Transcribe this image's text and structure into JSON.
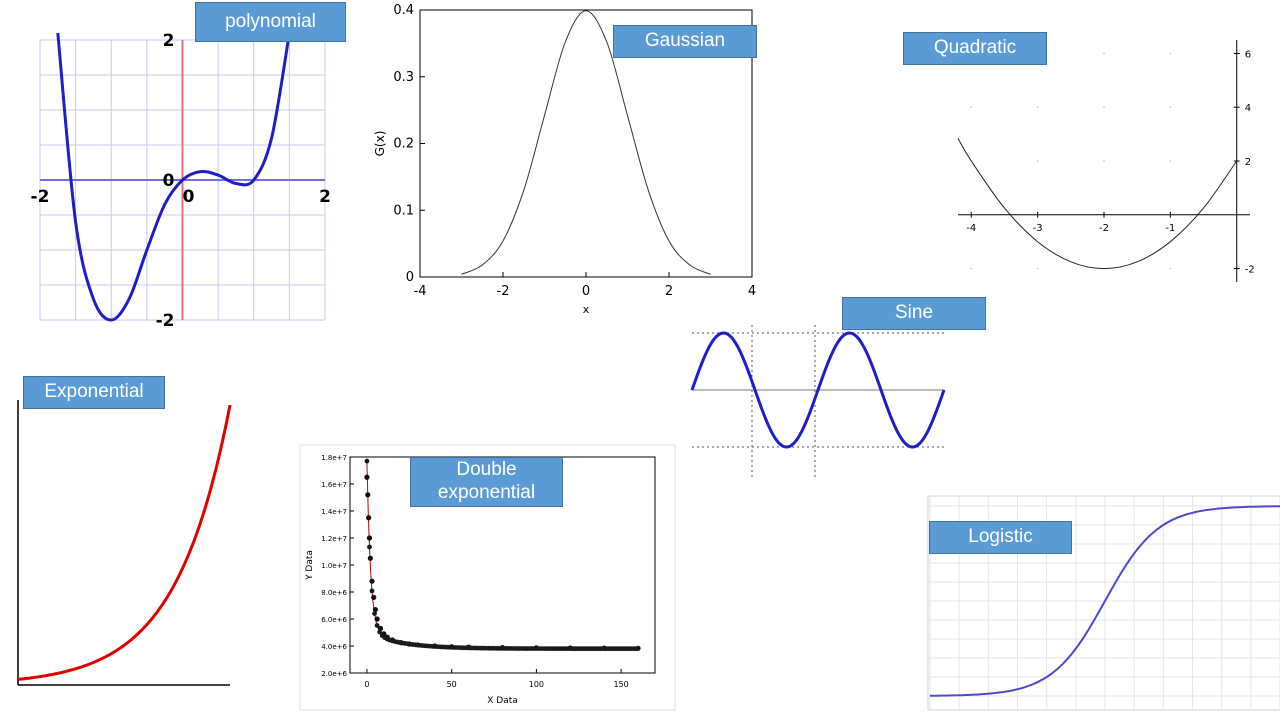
{
  "slide": {
    "labels": {
      "polynomial": "polynomial",
      "gaussian": "Gaussian",
      "quadratic": "Quadratic",
      "sine": "Sine",
      "exponential": "Exponential",
      "double_exponential": "Double exponential",
      "logistic": "Logistic"
    }
  },
  "colors": {
    "label_bg": "#5b9bd5",
    "blue_curve": "#1f1fc8",
    "red_curve": "#e00000",
    "logistic_curve": "#4a4ad0"
  },
  "chart_data": [
    {
      "id": "polynomial",
      "type": "line",
      "xlim": [
        -2,
        2
      ],
      "ylim": [
        -2,
        2
      ],
      "xticks": [
        "-2",
        "0",
        "2"
      ],
      "yticks": [
        "2",
        "0",
        "-2"
      ],
      "grid": true,
      "series": [
        {
          "x": [
            -1.75,
            -1.5,
            -1.25,
            -1,
            -0.75,
            -0.5,
            -0.25,
            0,
            0.25,
            0.5,
            0.75,
            1,
            1.25,
            1.5
          ],
          "y": [
            2.1,
            -0.6,
            -1.7,
            -2.0,
            -1.7,
            -1.0,
            -0.35,
            0,
            0.12,
            0.07,
            -0.05,
            0,
            0.6,
            2.1
          ]
        }
      ]
    },
    {
      "id": "gaussian",
      "type": "line",
      "xlim": [
        -4,
        4
      ],
      "ylim": [
        0,
        0.4
      ],
      "xticks": [
        "-4",
        "-2",
        "0",
        "2",
        "4"
      ],
      "yticks": [
        "0",
        "0.1",
        "0.2",
        "0.3",
        "0.4"
      ],
      "xlabel": "x",
      "ylabel": "G(x)",
      "series": [
        {
          "x": [
            -3,
            -2.5,
            -2,
            -1.5,
            -1,
            -0.5,
            0,
            0.5,
            1,
            1.5,
            2,
            2.5,
            3
          ],
          "y": [
            0.004,
            0.018,
            0.054,
            0.13,
            0.242,
            0.352,
            0.399,
            0.352,
            0.242,
            0.13,
            0.054,
            0.018,
            0.004
          ]
        }
      ]
    },
    {
      "id": "quadratic",
      "type": "line",
      "xlim": [
        -4.2,
        0.2
      ],
      "ylim": [
        -2.5,
        6.5
      ],
      "xticks": [
        "-4",
        "-3",
        "-2",
        "-1"
      ],
      "yticks": [
        "6",
        "4",
        "2",
        "-2"
      ],
      "series": [
        {
          "x": [
            -4.2,
            -4,
            -3.5,
            -3,
            -2.5,
            -2,
            -1.5,
            -1,
            -0.5,
            0
          ],
          "y": [
            2.84,
            2,
            0.25,
            -1,
            -1.75,
            -2,
            -1.75,
            -1,
            0.25,
            2
          ]
        }
      ]
    },
    {
      "id": "sine",
      "type": "line",
      "xlim": [
        0,
        12.566
      ],
      "ylim": [
        -1,
        1
      ],
      "series": [
        {
          "x": [
            0,
            1,
            2,
            3,
            4,
            5,
            6,
            7,
            8,
            9,
            10,
            11,
            12,
            12.566
          ],
          "y": [
            0,
            0.84,
            0.91,
            0.14,
            -0.76,
            -0.96,
            -0.28,
            0.66,
            0.99,
            0.41,
            -0.54,
            -1,
            -0.54,
            0
          ]
        }
      ]
    },
    {
      "id": "exponential",
      "type": "line",
      "xlim": [
        0,
        10
      ],
      "ylim": [
        0,
        1
      ],
      "series": [
        {
          "x": [
            0,
            1,
            2,
            3,
            4,
            5,
            6,
            7,
            8,
            9,
            10
          ],
          "y": [
            0.02,
            0.03,
            0.045,
            0.065,
            0.095,
            0.14,
            0.21,
            0.31,
            0.46,
            0.68,
            1.0
          ]
        }
      ]
    },
    {
      "id": "double_exponential",
      "type": "scatter",
      "xlim": [
        -10,
        170
      ],
      "ylim": [
        2000000,
        18000000
      ],
      "xticks": [
        "0",
        "50",
        "100",
        "150"
      ],
      "yticks": [
        "2.0e+6",
        "4.0e+6",
        "6.0e+6",
        "8.0e+6",
        "1.0e+7",
        "1.2e+7",
        "1.4e+7",
        "1.6e+7",
        "1.8e+7"
      ],
      "xlabel": "X Data",
      "ylabel": "Y Data",
      "series": [
        {
          "x": [
            0,
            0.5,
            1,
            1.5,
            2,
            3,
            4,
            5,
            6,
            8,
            10,
            12,
            15,
            20,
            25,
            30,
            40,
            50,
            60,
            80,
            100,
            120,
            140,
            160
          ],
          "y": [
            16500000,
            15200000,
            13500000,
            12000000,
            10500000,
            8800000,
            7600000,
            6700000,
            6000000,
            5300000,
            4900000,
            4650000,
            4450000,
            4250000,
            4150000,
            4080000,
            4000000,
            3950000,
            3920000,
            3880000,
            3860000,
            3850000,
            3840000,
            3830000
          ]
        }
      ]
    },
    {
      "id": "logistic",
      "type": "line",
      "xlim": [
        -6,
        6
      ],
      "ylim": [
        0,
        1
      ],
      "grid": true,
      "series": [
        {
          "x": [
            -6,
            -5,
            -4,
            -3,
            -2,
            -1.5,
            -1,
            -0.5,
            0,
            0.5,
            1,
            1.5,
            2,
            3,
            4,
            5,
            6
          ],
          "y": [
            0.002,
            0.007,
            0.018,
            0.047,
            0.119,
            0.182,
            0.269,
            0.378,
            0.5,
            0.622,
            0.731,
            0.818,
            0.881,
            0.953,
            0.982,
            0.993,
            0.998
          ]
        }
      ]
    }
  ]
}
